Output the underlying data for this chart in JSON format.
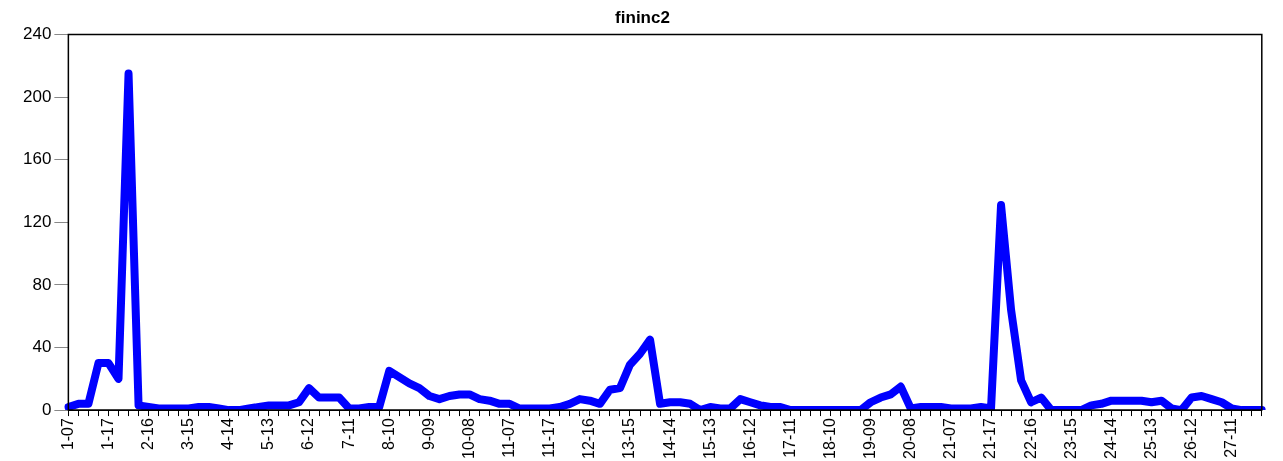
{
  "chart_data": {
    "type": "line",
    "title": "fininc2",
    "categories": [
      "1-07",
      null,
      null,
      null,
      "1-17",
      null,
      null,
      null,
      "2-16",
      null,
      null,
      null,
      "3-15",
      null,
      null,
      null,
      "4-14",
      null,
      null,
      null,
      "5-13",
      null,
      null,
      null,
      "6-12",
      null,
      null,
      null,
      "7-11",
      null,
      null,
      null,
      "8-10",
      null,
      null,
      null,
      "9-09",
      null,
      null,
      null,
      "10-08",
      null,
      null,
      null,
      "11-07",
      null,
      null,
      null,
      "11-17",
      null,
      null,
      null,
      "12-16",
      null,
      null,
      null,
      "13-15",
      null,
      null,
      null,
      "14-14",
      null,
      null,
      null,
      "15-13",
      null,
      null,
      null,
      "16-12",
      null,
      null,
      null,
      "17-11",
      null,
      null,
      null,
      "18-10",
      null,
      null,
      null,
      "19-09",
      null,
      null,
      null,
      "20-08",
      null,
      null,
      null,
      "21-07",
      null,
      null,
      null,
      "21-17",
      null,
      null,
      null,
      "22-16",
      null,
      null,
      null,
      "23-15",
      null,
      null,
      null,
      "24-14",
      null,
      null,
      null,
      "25-13",
      null,
      null,
      null,
      "26-12",
      null,
      null,
      null,
      "27-11",
      null,
      null,
      null
    ],
    "series": [
      {
        "color": "#0000ff",
        "values": [
          2,
          4,
          4,
          30,
          30,
          20,
          215,
          3,
          2,
          1,
          1,
          1,
          1,
          2,
          2,
          1,
          0,
          0,
          1,
          2,
          3,
          3,
          3,
          5,
          14,
          8,
          8,
          8,
          1,
          1,
          2,
          2,
          25,
          21,
          17,
          14,
          9,
          7,
          9,
          10,
          10,
          7,
          6,
          4,
          4,
          1,
          1,
          1,
          1,
          2,
          4,
          7,
          6,
          4,
          13,
          14,
          29,
          36,
          45,
          4,
          5,
          5,
          4,
          0,
          2,
          1,
          1,
          7,
          5,
          3,
          2,
          2,
          0,
          0,
          0,
          0,
          0,
          0,
          0,
          0,
          5,
          8,
          10,
          15,
          1,
          2,
          2,
          2,
          1,
          1,
          1,
          2,
          1,
          131,
          64,
          19,
          5,
          8,
          0,
          0,
          0,
          0,
          3,
          4,
          6,
          6,
          6,
          6,
          5,
          6,
          1,
          0,
          8,
          9,
          7,
          5,
          1,
          0,
          0,
          0
        ]
      }
    ],
    "ylim": [
      0,
      240
    ],
    "yticks": [
      0,
      40,
      80,
      120,
      160,
      200,
      240
    ],
    "grid": false,
    "legend": false,
    "marker": "none",
    "line_style": "solid"
  }
}
